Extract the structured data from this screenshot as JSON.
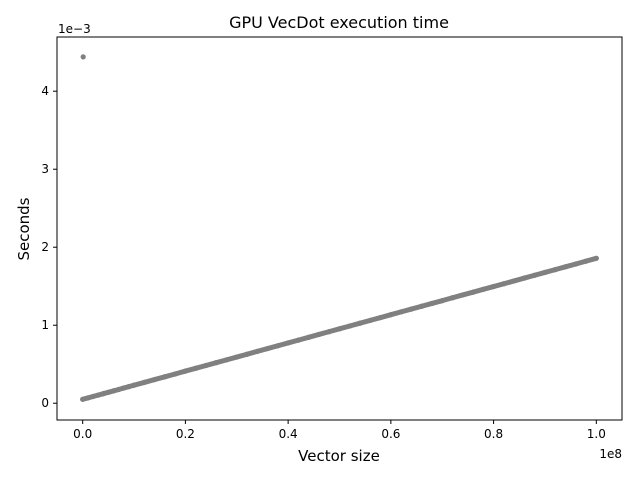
{
  "chart_data": {
    "type": "scatter",
    "title": "GPU VecDot execution time",
    "xlabel": "Vector size",
    "ylabel": "Seconds",
    "x_offset_text": "1e8",
    "y_offset_text": "1e−3",
    "xlim": [
      -5000000,
      105000000
    ],
    "ylim": [
      -0.000215,
      0.004695
    ],
    "x_ticks": [
      0,
      20000000,
      40000000,
      60000000,
      80000000,
      100000000
    ],
    "x_tick_labels": [
      "0.0",
      "0.2",
      "0.4",
      "0.6",
      "0.8",
      "1.0"
    ],
    "y_ticks": [
      0,
      0.001,
      0.002,
      0.003,
      0.004
    ],
    "y_tick_labels": [
      "0",
      "1",
      "2",
      "3",
      "4"
    ],
    "grid": false,
    "marker_color": "#808080",
    "series": [
      {
        "x": [
          0,
          1000000,
          2000000,
          3000000,
          4000000,
          5000000,
          6000000,
          7000000,
          8000000,
          9000000,
          10000000,
          12000000,
          14000000,
          16000000,
          18000000,
          20000000,
          22000000,
          24000000,
          26000000,
          28000000,
          30000000,
          32000000,
          34000000,
          36000000,
          38000000,
          40000000,
          42000000,
          44000000,
          46000000,
          48000000,
          50000000,
          52000000,
          54000000,
          56000000,
          58000000,
          60000000,
          62000000,
          64000000,
          66000000,
          68000000,
          70000000,
          72000000,
          74000000,
          76000000,
          78000000,
          80000000,
          82000000,
          84000000,
          86000000,
          88000000,
          90000000,
          92000000,
          94000000,
          96000000,
          98000000,
          100000000,
          100000
        ],
        "y": [
          5e-05,
          6.8e-05,
          8.6e-05,
          0.000104,
          0.000122,
          0.00014,
          0.000158,
          0.000176,
          0.000195,
          0.000213,
          0.000231,
          0.000267,
          0.000303,
          0.000339,
          0.000375,
          0.000412,
          0.000448,
          0.000484,
          0.00052,
          0.000556,
          0.000592,
          0.000628,
          0.000665,
          0.000701,
          0.000737,
          0.000773,
          0.000809,
          0.000845,
          0.000882,
          0.000918,
          0.000954,
          0.00099,
          0.001026,
          0.001062,
          0.001098,
          0.001135,
          0.001171,
          0.001207,
          0.001243,
          0.001279,
          0.001315,
          0.001352,
          0.001388,
          0.001424,
          0.00146,
          0.001496,
          0.001532,
          0.001568,
          0.001605,
          0.001641,
          0.001677,
          0.001713,
          0.001749,
          0.001785,
          0.001822,
          0.001858,
          0.00444
        ]
      }
    ]
  }
}
